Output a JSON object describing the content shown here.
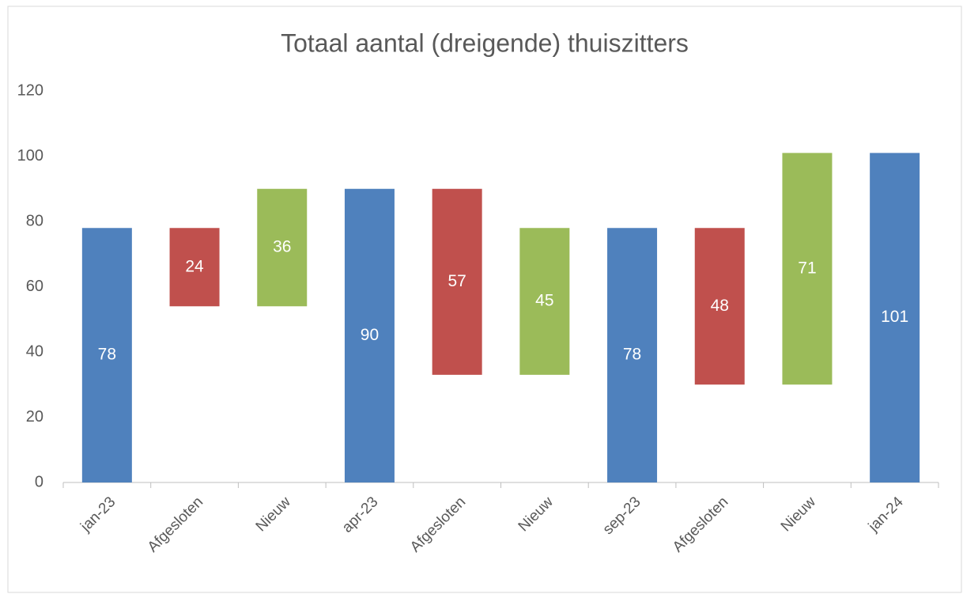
{
  "chart_data": {
    "type": "waterfall",
    "title": "Totaal aantal (dreigende) thuiszitters",
    "categories": [
      "jan-23",
      "Afgesloten",
      "Nieuw",
      "apr-23",
      "Afgesloten",
      "Nieuw",
      "sep-23",
      "Afgesloten",
      "Nieuw",
      "jan-24"
    ],
    "values": [
      78,
      24,
      36,
      90,
      57,
      45,
      78,
      48,
      71,
      101
    ],
    "measure": [
      "total",
      "decrease",
      "increase",
      "total",
      "decrease",
      "increase",
      "total",
      "decrease",
      "increase",
      "total"
    ],
    "colors": {
      "total": "#4f81bd",
      "decrease": "#c0504d",
      "increase": "#9bbb59"
    },
    "ylim": [
      0,
      120
    ],
    "yticks": [
      0,
      20,
      40,
      60,
      80,
      100,
      120
    ],
    "grid": false
  }
}
